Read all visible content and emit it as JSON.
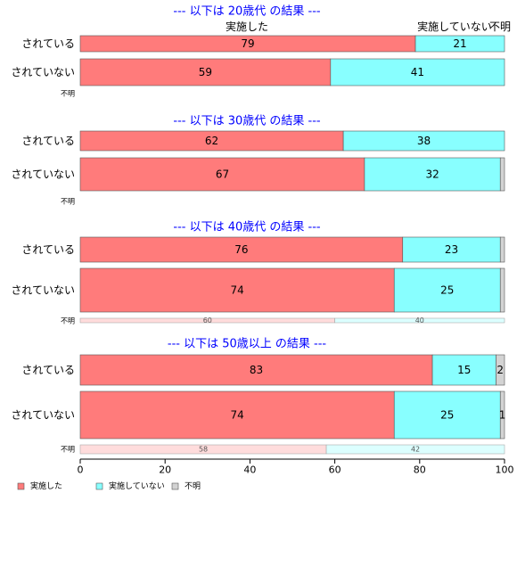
{
  "chart_data": {
    "type": "bar",
    "orientation": "horizontal",
    "stacked": true,
    "xlim": [
      0,
      100
    ],
    "x_ticks": [
      "0",
      "20",
      "40",
      "60",
      "80",
      "100"
    ],
    "row_labels": [
      "されている",
      "されていない",
      "不明"
    ],
    "column_headers": [
      "実施した",
      "実施していない",
      "不明"
    ],
    "legend": [
      "実施した",
      "実施していない",
      "不明"
    ],
    "legend_position": "bottom-left",
    "colors": [
      "#ff7b7b",
      "#88ffff",
      "#d3d3d3"
    ],
    "title_color": "#0000ff",
    "panels": [
      {
        "title": "--- 以下は 20歳代 の結果 ---",
        "rows": [
          {
            "label": "されている",
            "values": [
              79,
              21,
              0
            ],
            "labels": [
              "79",
              "21",
              ""
            ]
          },
          {
            "label": "されていない",
            "values": [
              59,
              41,
              0
            ],
            "labels": [
              "59",
              "41",
              ""
            ]
          },
          {
            "label": "不明",
            "values": [],
            "labels": []
          }
        ]
      },
      {
        "title": "--- 以下は 30歳代 の結果 ---",
        "rows": [
          {
            "label": "されている",
            "values": [
              62,
              38,
              0
            ],
            "labels": [
              "62",
              "38",
              ""
            ]
          },
          {
            "label": "されていない",
            "values": [
              67,
              32,
              1
            ],
            "labels": [
              "67",
              "32",
              ""
            ]
          },
          {
            "label": "不明",
            "values": [],
            "labels": []
          }
        ]
      },
      {
        "title": "--- 以下は 40歳代 の結果 ---",
        "rows": [
          {
            "label": "されている",
            "values": [
              76,
              23,
              1
            ],
            "labels": [
              "76",
              "23",
              ""
            ]
          },
          {
            "label": "されていない",
            "values": [
              74,
              25,
              1
            ],
            "labels": [
              "74",
              "25",
              ""
            ]
          },
          {
            "label": "不明",
            "values": [
              60,
              40,
              0
            ],
            "labels": [
              "60",
              "40",
              ""
            ]
          }
        ]
      },
      {
        "title": "--- 以下は 50歳以上 の結果 ---",
        "rows": [
          {
            "label": "されている",
            "values": [
              83,
              15,
              2
            ],
            "labels": [
              "83",
              "15",
              "2"
            ]
          },
          {
            "label": "されていない",
            "values": [
              74,
              25,
              1
            ],
            "labels": [
              "74",
              "25",
              "1"
            ]
          },
          {
            "label": "不明",
            "values": [
              58,
              42,
              0
            ],
            "labels": [
              "58",
              "42",
              ""
            ]
          }
        ]
      }
    ]
  }
}
